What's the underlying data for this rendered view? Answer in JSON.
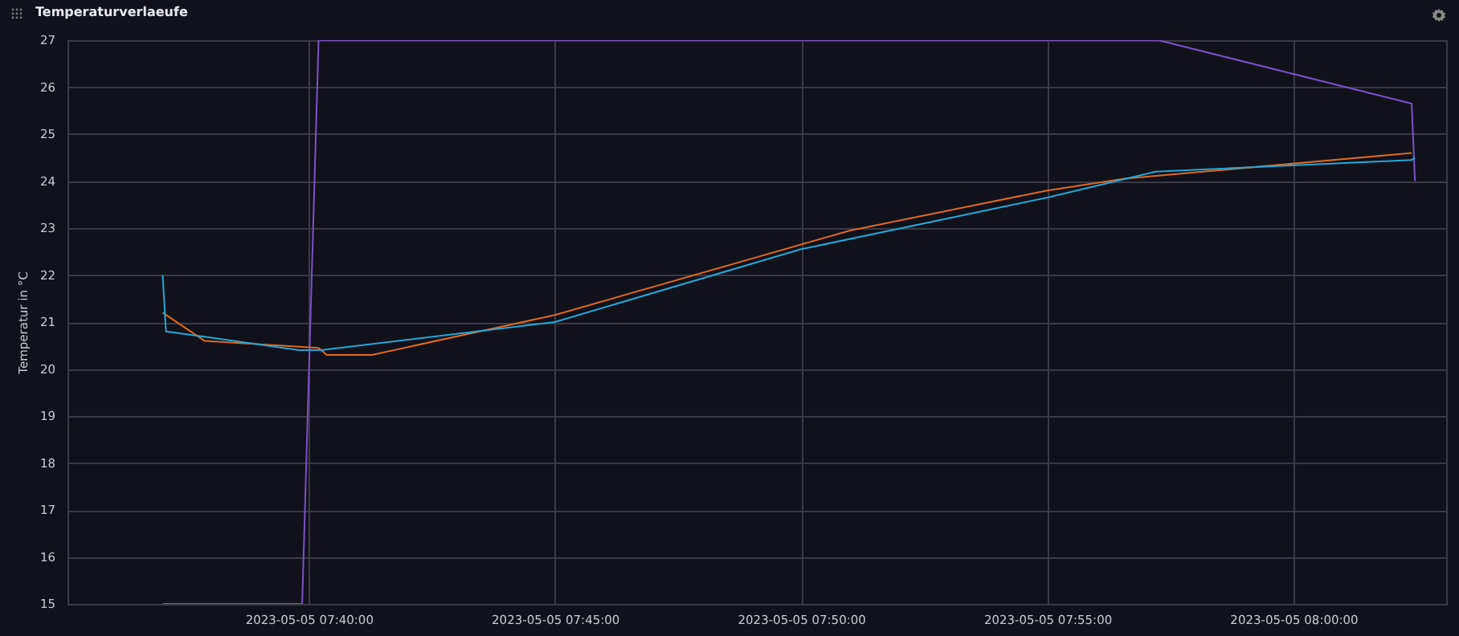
{
  "chart_data": {
    "type": "line",
    "title": "Temperaturverlaeufe",
    "ylabel": "Temperatur in °C",
    "xlim": [
      "2023-05-05T07:35:06",
      "2023-05-05T08:03:06"
    ],
    "xticks": [
      {
        "value": "2023-05-05T07:40",
        "label": "2023-05-05 07:40:00"
      },
      {
        "value": "2023-05-05T07:45",
        "label": "2023-05-05 07:45:00"
      },
      {
        "value": "2023-05-05T07:50",
        "label": "2023-05-05 07:50:00"
      },
      {
        "value": "2023-05-05T07:55",
        "label": "2023-05-05 07:55:00"
      },
      {
        "value": "2023-05-05T08:00",
        "label": "2023-05-05 08:00:00"
      }
    ],
    "ylim": [
      15,
      27
    ],
    "yticks": [
      15,
      16,
      17,
      18,
      19,
      20,
      21,
      22,
      23,
      24,
      25,
      26,
      27
    ],
    "grid": true,
    "line_style": "solid",
    "series": [
      {
        "color": "#7b52c9",
        "x": [
          "2023-05-05T07:37:02",
          "2023-05-05T07:39:52",
          "2023-05-05T07:40:12",
          "2023-05-05T07:57:15",
          "2023-05-05T08:02:24",
          "2023-05-05T08:02:28"
        ],
        "values": [
          15,
          15,
          27,
          27,
          25.65,
          24.0
        ]
      },
      {
        "color": "#e0691f",
        "x": [
          "2023-05-05T07:37:02",
          "2023-05-05T07:37:53",
          "2023-05-05T07:40:12",
          "2023-05-05T07:40:22",
          "2023-05-05T07:41:17",
          "2023-05-05T07:45:00",
          "2023-05-05T07:51:00",
          "2023-05-05T07:55:00",
          "2023-05-05T07:56:34",
          "2023-05-05T08:02:24"
        ],
        "values": [
          21.2,
          20.6,
          20.45,
          20.3,
          20.3,
          21.15,
          22.95,
          23.8,
          24.05,
          24.6
        ]
      },
      {
        "color": "#22a8d8",
        "x": [
          "2023-05-05T07:37:02",
          "2023-05-05T07:37:06",
          "2023-05-05T07:37:47",
          "2023-05-05T07:39:48",
          "2023-05-05T07:40:15",
          "2023-05-05T07:45:00",
          "2023-05-05T07:50:00",
          "2023-05-05T07:55:00",
          "2023-05-05T07:57:12",
          "2023-05-05T08:02:24",
          "2023-05-05T08:02:28"
        ],
        "values": [
          22.0,
          20.8,
          20.7,
          20.4,
          20.4,
          21.0,
          22.55,
          23.65,
          24.2,
          24.45,
          24.5
        ]
      }
    ]
  }
}
